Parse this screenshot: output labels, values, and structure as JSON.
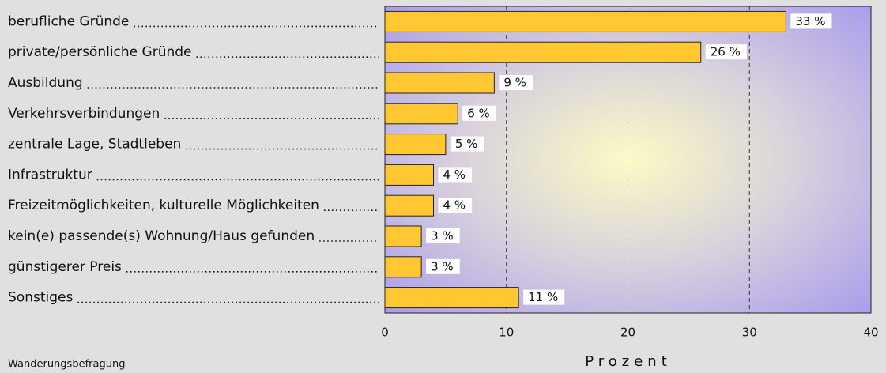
{
  "chart_data": {
    "type": "hbar",
    "categories": [
      "berufliche Gründe",
      "private/persönliche Gründe",
      "Ausbildung",
      "Verkehrsverbindungen",
      "zentrale Lage, Stadtleben",
      "Infrastruktur",
      "Freizeitmöglichkeiten, kulturelle Möglichkeiten",
      "kein(e) passende(s) Wohnung/Haus gefunden",
      "günstigerer Preis",
      "Sonstiges"
    ],
    "values": [
      33,
      26,
      9,
      6,
      5,
      4,
      4,
      3,
      3,
      11
    ],
    "value_labels": [
      "33 %",
      "26 %",
      "9 %",
      "6 %",
      "5 %",
      "4 %",
      "4 %",
      "3 %",
      "3 %",
      "11 %"
    ],
    "color": "#ffc833",
    "xlabel": "Prozent",
    "source": "Wanderungsbefragung",
    "xlim": [
      0,
      40
    ],
    "xticks": [
      0,
      10,
      20,
      30,
      40
    ],
    "grid": true
  }
}
